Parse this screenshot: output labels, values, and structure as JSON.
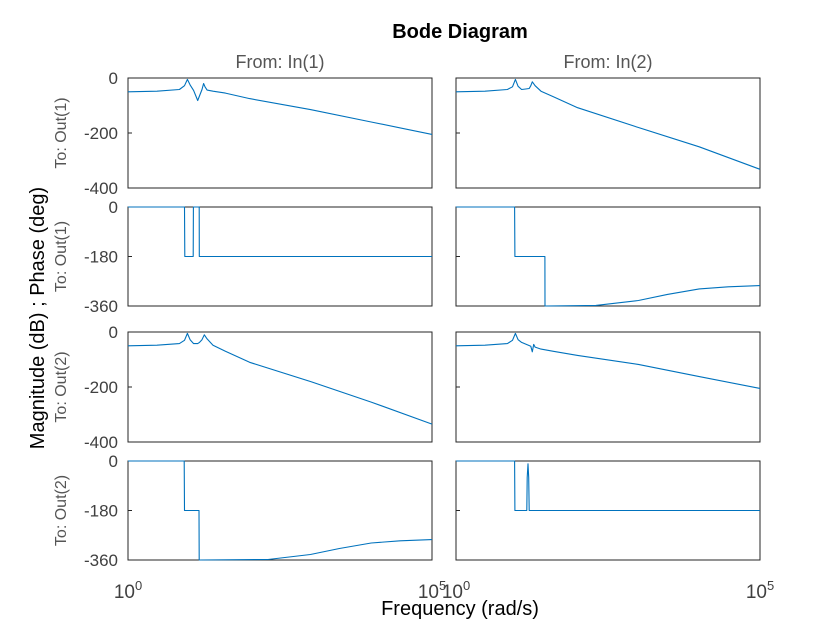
{
  "chart_data": {
    "type": "line",
    "title": "Bode Diagram",
    "xlabel": "Frequency  (rad/s)",
    "ylabel": "Magnitude (dB) ; Phase (deg)",
    "xscale": "log",
    "xlim": [
      1,
      100000
    ],
    "x_ticks": [
      {
        "base": "10",
        "exp": "0"
      },
      {
        "base": "10",
        "exp": "5"
      }
    ],
    "grid": false,
    "line_color": "#0072BD",
    "columns": [
      "From: In(1)",
      "From: In(2)"
    ],
    "rows": [
      {
        "label": "To: Out(1)",
        "kind": "magnitude",
        "ylim": [
          -400,
          0
        ],
        "yticks": [
          "0",
          "-200",
          "-400"
        ]
      },
      {
        "label": "To: Out(1)",
        "kind": "phase",
        "ylim": [
          -360,
          0
        ],
        "yticks": [
          "0",
          "-180",
          "-360"
        ]
      },
      {
        "label": "To: Out(2)",
        "kind": "magnitude",
        "ylim": [
          -400,
          0
        ],
        "yticks": [
          "0",
          "-200",
          "-400"
        ]
      },
      {
        "label": "To: Out(2)",
        "kind": "phase",
        "ylim": [
          -360,
          0
        ],
        "yticks": [
          "0",
          "-180",
          "-360"
        ]
      }
    ],
    "series": [
      {
        "row": 0,
        "col": 0,
        "x": [
          1,
          3,
          7,
          8.5,
          9.5,
          10.5,
          12,
          14,
          16.5,
          17.5,
          18.5,
          20,
          25,
          40,
          100,
          1000,
          10000,
          100000
        ],
        "y": [
          -50,
          -48,
          -42,
          -28,
          -5,
          -25,
          -45,
          -82,
          -42,
          -20,
          -32,
          -44,
          -48,
          -55,
          -75,
          -115,
          -160,
          -205
        ]
      },
      {
        "row": 0,
        "col": 1,
        "x": [
          1,
          3,
          7,
          8.5,
          9.5,
          10.5,
          12,
          14,
          16,
          17,
          18,
          20,
          25,
          40,
          100,
          1000,
          10000,
          100000
        ],
        "y": [
          -50,
          -48,
          -42,
          -32,
          -5,
          -30,
          -42,
          -40,
          -38,
          -28,
          -14,
          -28,
          -48,
          -68,
          -108,
          -180,
          -250,
          -332
        ]
      },
      {
        "row": 1,
        "col": 0,
        "x": [
          1,
          8.5,
          8.6,
          11.8,
          11.9,
          14.8,
          14.9,
          100000
        ],
        "y": [
          0,
          0,
          -180,
          -180,
          0,
          0,
          -180,
          -180
        ]
      },
      {
        "row": 1,
        "col": 1,
        "x": [
          1,
          9.2,
          9.3,
          29,
          29.1,
          200,
          1000,
          3000,
          10000,
          30000,
          100000
        ],
        "y": [
          0,
          0,
          -180,
          -180,
          -360,
          -358,
          -340,
          -318,
          -298,
          -290,
          -286
        ]
      },
      {
        "row": 2,
        "col": 0,
        "x": [
          1,
          3,
          7,
          8.5,
          9.5,
          10.5,
          12,
          14,
          15,
          16.5,
          18,
          20,
          25,
          40,
          100,
          1000,
          10000,
          100000
        ],
        "y": [
          -50,
          -48,
          -42,
          -30,
          -5,
          -28,
          -42,
          -42,
          -38,
          -28,
          -10,
          -25,
          -48,
          -70,
          -110,
          -180,
          -255,
          -335
        ]
      },
      {
        "row": 2,
        "col": 1,
        "x": [
          1,
          3,
          7,
          8.5,
          9.5,
          10.5,
          12,
          17,
          18,
          19,
          20,
          25,
          40,
          100,
          1000,
          10000,
          100000
        ],
        "y": [
          -50,
          -48,
          -42,
          -30,
          -5,
          -28,
          -38,
          -52,
          -72,
          -45,
          -55,
          -62,
          -70,
          -85,
          -118,
          -162,
          -205
        ]
      },
      {
        "row": 3,
        "col": 0,
        "x": [
          1,
          8.4,
          8.5,
          14.7,
          14.8,
          200,
          1000,
          3000,
          10000,
          30000,
          100000
        ],
        "y": [
          0,
          0,
          -180,
          -180,
          -360,
          -358,
          -340,
          -318,
          -298,
          -290,
          -286
        ]
      },
      {
        "row": 3,
        "col": 1,
        "x": [
          1,
          9.2,
          9.3,
          14.6,
          14.8,
          15.3,
          15.7,
          16.0,
          16.1,
          100000
        ],
        "y": [
          0,
          0,
          -180,
          -180,
          -60,
          -10,
          -60,
          -180,
          -180,
          -180
        ]
      }
    ]
  }
}
